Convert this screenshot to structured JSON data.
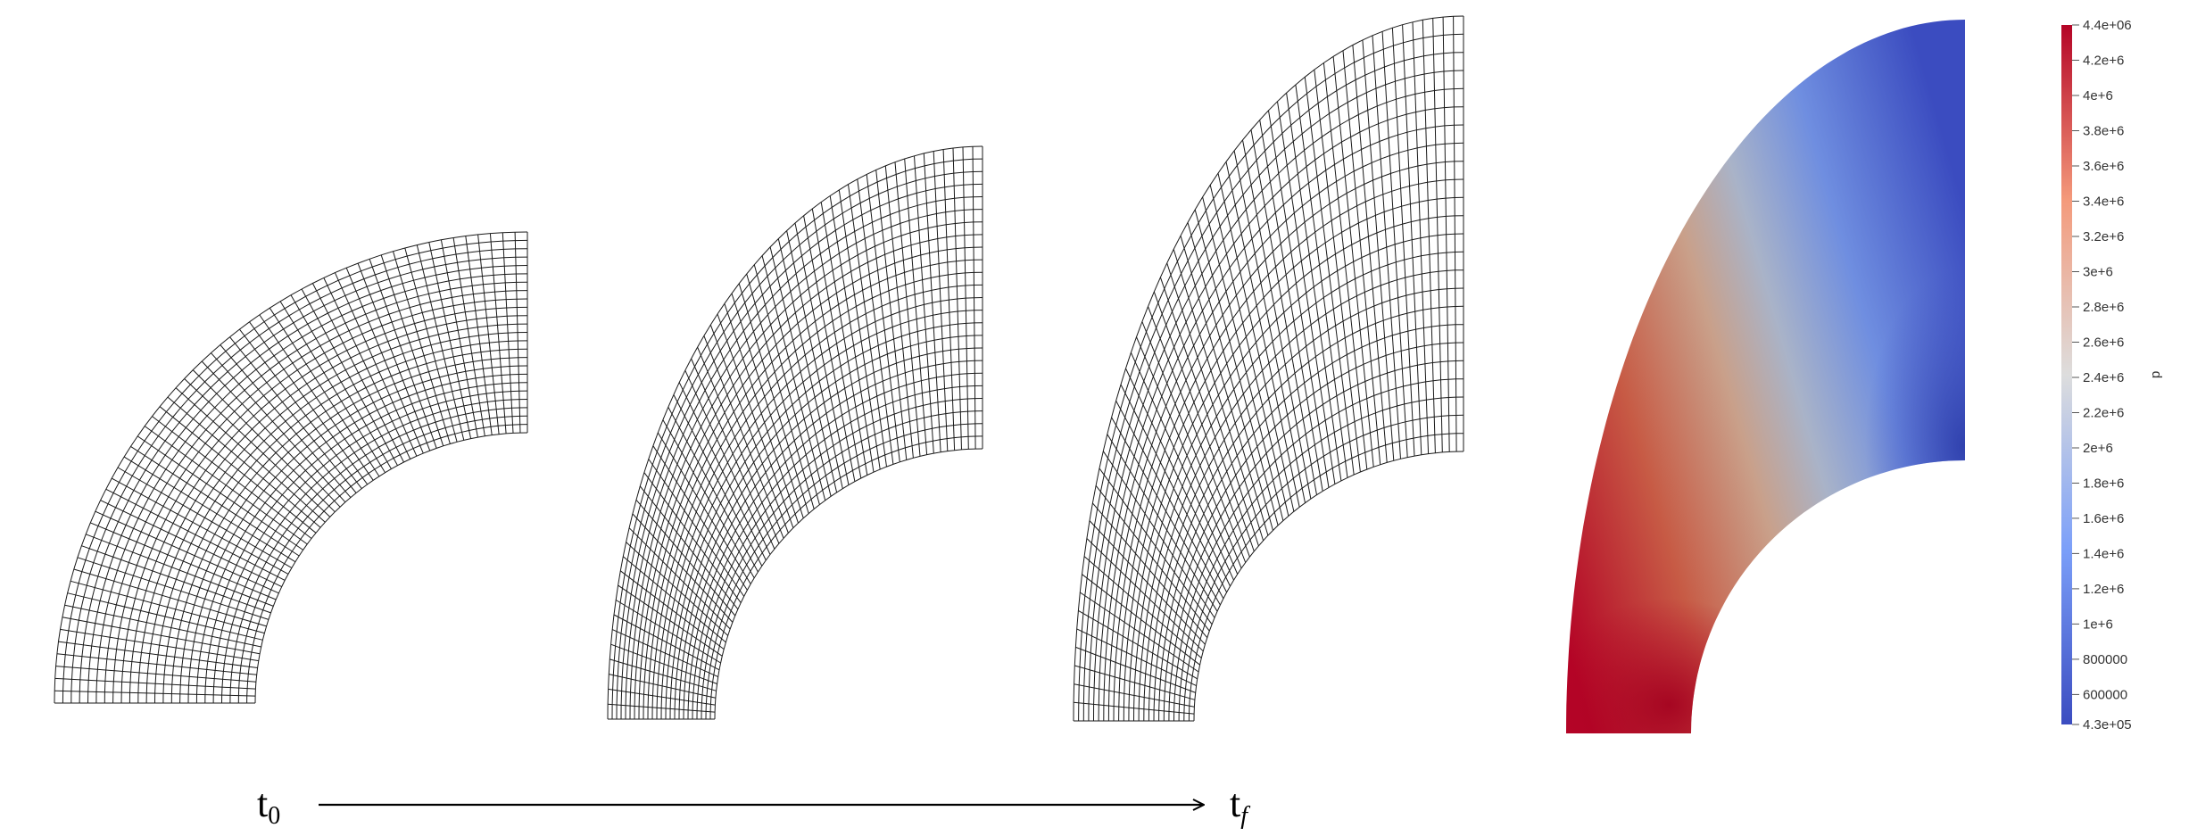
{
  "timeline": {
    "start_label": "t",
    "start_subscript": "0",
    "end_label": "t",
    "end_subscript": "f"
  },
  "panels": [
    {
      "name": "mesh-initial",
      "kind": "mesh"
    },
    {
      "name": "mesh-intermediate",
      "kind": "mesh"
    },
    {
      "name": "mesh-final",
      "kind": "mesh"
    },
    {
      "name": "pressure-field",
      "kind": "contour",
      "field": "p"
    }
  ],
  "colorbar": {
    "title": "p",
    "max_label": "4.4e+06",
    "min_label": "4.3e+05",
    "colormap": "Cool to Warm",
    "color_low": "#3b4cc0",
    "color_mid": "#dddddd",
    "color_high": "#b40426",
    "range": [
      430000,
      4400000
    ],
    "ticks": [
      {
        "value": 4400000,
        "label": "4.4e+06"
      },
      {
        "value": 4200000,
        "label": "4.2e+6"
      },
      {
        "value": 4000000,
        "label": "4e+6"
      },
      {
        "value": 3800000,
        "label": "3.8e+6"
      },
      {
        "value": 3600000,
        "label": "3.6e+6"
      },
      {
        "value": 3400000,
        "label": "3.4e+6"
      },
      {
        "value": 3200000,
        "label": "3.2e+6"
      },
      {
        "value": 3000000,
        "label": "3e+6"
      },
      {
        "value": 2800000,
        "label": "2.8e+6"
      },
      {
        "value": 2600000,
        "label": "2.6e+6"
      },
      {
        "value": 2400000,
        "label": "2.4e+6"
      },
      {
        "value": 2200000,
        "label": "2.2e+6"
      },
      {
        "value": 2000000,
        "label": "2e+6"
      },
      {
        "value": 1800000,
        "label": "1.8e+6"
      },
      {
        "value": 1600000,
        "label": "1.6e+6"
      },
      {
        "value": 1400000,
        "label": "1.4e+6"
      },
      {
        "value": 1200000,
        "label": "1.2e+6"
      },
      {
        "value": 1000000,
        "label": "1e+6"
      },
      {
        "value": 800000,
        "label": "800000"
      },
      {
        "value": 600000,
        "label": "600000"
      },
      {
        "value": 430000,
        "label": "4.3e+05"
      }
    ]
  },
  "colors": {
    "mesh_line": "#1a1a1a",
    "arrow": "#000000"
  }
}
